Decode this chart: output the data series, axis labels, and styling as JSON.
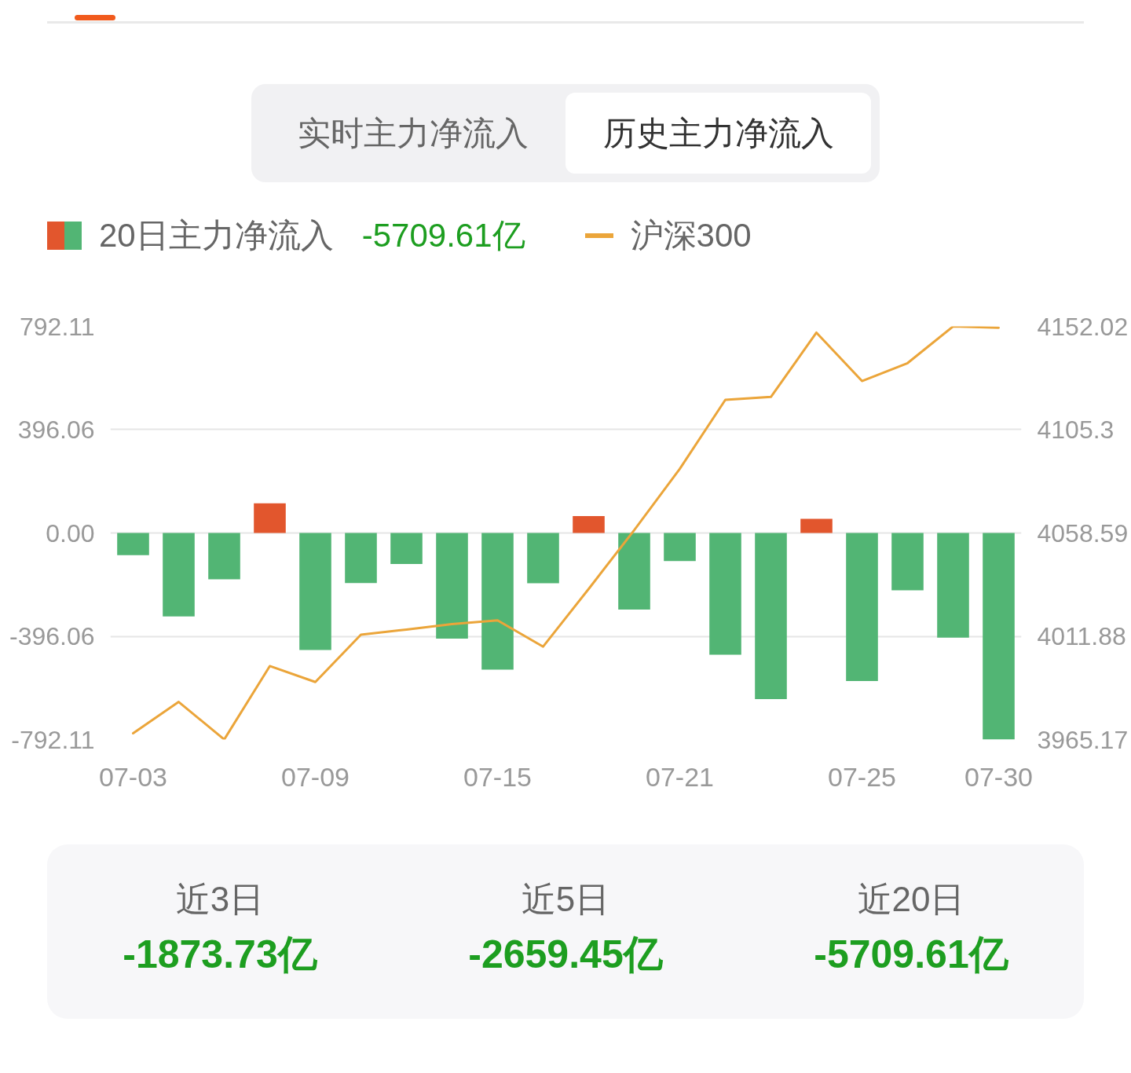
{
  "chart_data": [
    {
      "type": "other",
      "annotations": [
        "实时主力净流入",
        "历史主力净流入"
      ]
    },
    {
      "type": "bar",
      "categories": [
        "07-03",
        null,
        null,
        null,
        "07-09",
        null,
        null,
        null,
        "07-15",
        null,
        null,
        null,
        "07-21",
        null,
        null,
        null,
        "07-25",
        null,
        null,
        "07-30"
      ],
      "series": [
        {
          "name": "20日主力净流入",
          "type": "bar",
          "colors": [
            "#52b574",
            "#52b574",
            "#52b574",
            "#e2562d",
            "#52b574",
            "#52b574",
            "#52b574",
            "#52b574",
            "#52b574",
            "#52b574",
            "#e2562d",
            "#52b574",
            "#52b574",
            "#52b574",
            "#52b574",
            "#e2562d",
            "#52b574",
            "#52b574",
            "#52b574",
            "#52b574"
          ],
          "values": [
            -85,
            -320,
            -178,
            114,
            -449,
            -192,
            -119,
            -405,
            -524,
            -193,
            65,
            -294,
            -108,
            -467,
            -637,
            54,
            -568,
            -220,
            -401,
            -792
          ]
        },
        {
          "name": "沪深300",
          "type": "line",
          "axis": "y2",
          "color": "#eba53a",
          "values": [
            3968.0,
            3982.2,
            3965.2,
            3998.4,
            3991.2,
            4012.6,
            4014.9,
            4017.4,
            4019.1,
            4007.2,
            4033.3,
            4059.9,
            4087.6,
            4118.8,
            4120.1,
            4149.2,
            4127.3,
            4135.4,
            4152.0,
            4151.4
          ]
        }
      ],
      "ylim": [
        -792.11,
        792.11
      ],
      "yticks": [
        -792.11,
        -396.06,
        {
          "value": 0,
          "label": "0.00"
        },
        396.06,
        792.11
      ],
      "y2lim": [
        3965.17,
        4152.02
      ],
      "y2ticks": [
        3965.17,
        4011.88,
        4058.59,
        4105.3,
        4152.02
      ],
      "grid": "y",
      "legend": "top left",
      "annotations": [
        "-5709.61亿"
      ]
    },
    {
      "type": "other",
      "categories": [
        "近3日",
        "近5日",
        "近20日"
      ],
      "value_labels": [
        "-1873.73亿",
        "-2659.45亿",
        "-5709.61亿"
      ]
    }
  ]
}
